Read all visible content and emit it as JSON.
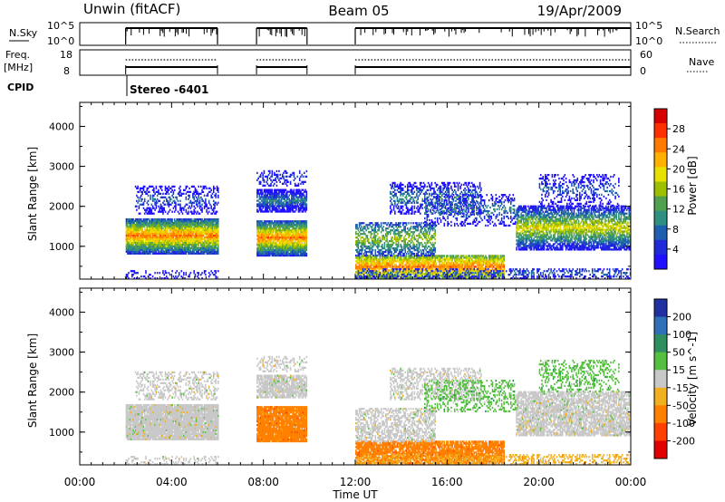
{
  "header": {
    "title_left": "Unwin (fitACF)",
    "title_center": "Beam 05",
    "title_right": "19/Apr/2009"
  },
  "status_panels": {
    "nsky_label": "N.Sky",
    "nsky_top_tick": "10^5",
    "nsky_bottom_tick": "10^0",
    "nsky_right_top_tick": "10^5",
    "nsky_right_bottom_tick": "10^0",
    "nsearch_label": "N.Search",
    "freq_label_1": "Freq.",
    "freq_label_2": "[MHz]",
    "freq_top_tick": "18",
    "freq_bottom_tick": "8",
    "nave_top_tick": "60",
    "nave_bottom_tick": "0",
    "nave_label": "Nave",
    "cpid_label": "CPID",
    "cpid_value": "Stereo -6401"
  },
  "chart_data": [
    {
      "type": "heatmap",
      "parameter": "Power",
      "ylabel": "Slant Range [km]",
      "xlabel": "",
      "x_ticks": [
        "00:00",
        "04:00",
        "08:00",
        "12:00",
        "16:00",
        "20:00",
        "00:00"
      ],
      "xlim_hours": [
        0,
        24
      ],
      "ylim": [
        180,
        4600
      ],
      "y_ticks": [
        1000,
        2000,
        3000,
        4000
      ],
      "colorbar": {
        "label": "Power [dB]",
        "ticks": [
          "28",
          "24",
          "20",
          "16",
          "12",
          "8",
          "4"
        ],
        "colors": [
          "#d60000",
          "#ff3000",
          "#ff7a00",
          "#ffb000",
          "#e8e000",
          "#9cc000",
          "#50a050",
          "#2f8f80",
          "#1f5fb0",
          "#1f2ad8",
          "#2010ff"
        ]
      },
      "data_gaps_hours": [
        [
          0,
          2.0
        ],
        [
          6.0,
          7.7
        ],
        [
          9.9,
          12.0
        ]
      ]
    },
    {
      "type": "heatmap",
      "parameter": "Velocity",
      "ylabel": "Slant Range [km]",
      "xlabel": "Time UT",
      "x_ticks": [
        "00:00",
        "04:00",
        "08:00",
        "12:00",
        "16:00",
        "20:00",
        "00:00"
      ],
      "xlim_hours": [
        0,
        24
      ],
      "ylim": [
        180,
        4600
      ],
      "y_ticks": [
        1000,
        2000,
        3000,
        4000
      ],
      "colorbar": {
        "label": "Velocity [m s^-1]",
        "ticks": [
          "200",
          "100",
          "50",
          "15",
          "-15",
          "-50",
          "-100",
          "-200"
        ],
        "colors": [
          "#2030a0",
          "#2f70b8",
          "#2f8f60",
          "#55c040",
          "#c8c8c8",
          "#f0b020",
          "#ff8000",
          "#ff4000",
          "#e00000"
        ]
      },
      "data_gaps_hours": [
        [
          0,
          2.0
        ],
        [
          6.0,
          7.7
        ],
        [
          9.9,
          12.0
        ]
      ]
    }
  ]
}
